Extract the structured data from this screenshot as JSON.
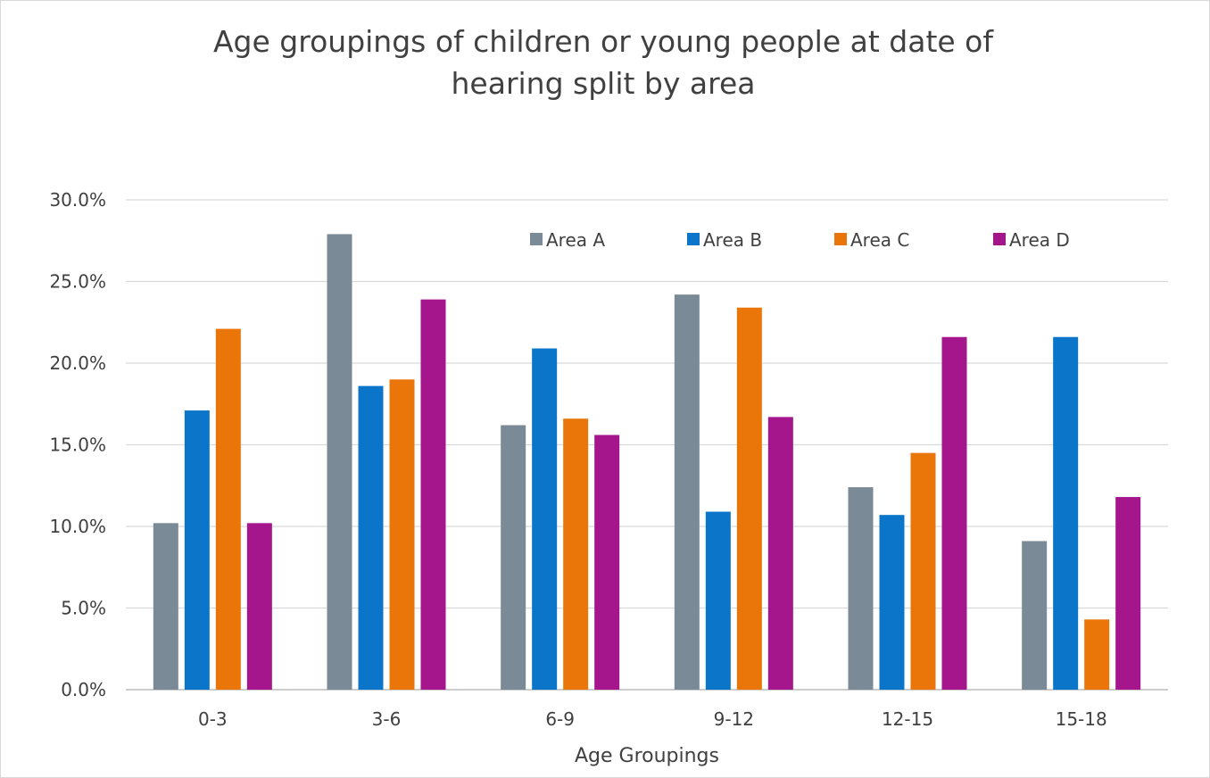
{
  "chart_data": {
    "type": "bar",
    "title": "Age groupings of children or young people at date of\nhearing split by area",
    "xlabel": "Age Groupings",
    "ylabel": "",
    "categories": [
      "0-3",
      "3-6",
      "6-9",
      "9-12",
      "12-15",
      "15-18"
    ],
    "series": [
      {
        "name": "Area A",
        "color": "#7a8a96",
        "values": [
          10.2,
          27.9,
          16.2,
          24.2,
          12.4,
          9.1
        ]
      },
      {
        "name": "Area B",
        "color": "#0a75c9",
        "values": [
          17.1,
          18.6,
          20.9,
          10.9,
          10.7,
          21.6
        ]
      },
      {
        "name": "Area C",
        "color": "#ea7609",
        "values": [
          22.1,
          19.0,
          16.6,
          23.4,
          14.5,
          4.3
        ]
      },
      {
        "name": "Area D",
        "color": "#a5168c",
        "values": [
          10.2,
          23.9,
          15.6,
          16.7,
          21.6,
          11.8
        ]
      }
    ],
    "ylim": [
      0,
      30
    ],
    "yticks": [
      "0.0%",
      "5.0%",
      "10.0%",
      "15.0%",
      "20.0%",
      "25.0%",
      "30.0%"
    ],
    "grid": true,
    "legend_position": "top-right"
  }
}
